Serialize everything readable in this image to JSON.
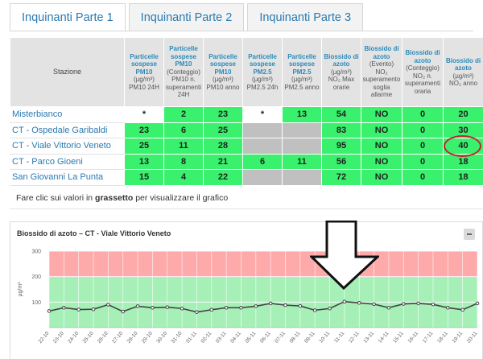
{
  "tabs": [
    {
      "label": "Inquinanti Parte 1",
      "active": true
    },
    {
      "label": "Inquinanti Parte 2",
      "active": false
    },
    {
      "label": "Inquinanti Parte 3",
      "active": false
    }
  ],
  "table": {
    "station_header": "Stazione",
    "columns": [
      {
        "title": "Particelle sospese PM10",
        "unit": "(µg/m³)",
        "desc": "PM10 24H"
      },
      {
        "title": "Particelle sospese PM10",
        "unit": "(Conteggio)",
        "desc": "PM10 n. superamenti 24H"
      },
      {
        "title": "Particelle sospese PM10",
        "unit": "(µg/m³)",
        "desc": "PM10 anno"
      },
      {
        "title": "Particelle sospese PM2.5",
        "unit": "(µg/m³)",
        "desc": "PM2.5 24h"
      },
      {
        "title": "Particelle sospese PM2.5",
        "unit": "(µg/m³)",
        "desc": "PM2.5 anno"
      },
      {
        "title": "Biossido di azoto",
        "unit": "(µg/m³)",
        "desc": "NO₂ Max orarie"
      },
      {
        "title": "Biossido di azoto",
        "unit": "(Evento)",
        "desc": "NO₂ superamento soglia allarme"
      },
      {
        "title": "Biossido di azoto",
        "unit": "(Conteggio)",
        "desc": "NO₂ n. superamenti oraria"
      },
      {
        "title": "Biossido di azoto",
        "unit": "(µg/m³)",
        "desc": "NO₂ anno"
      }
    ],
    "rows": [
      {
        "name": "Misterbianco",
        "cells": [
          "*",
          "2",
          "23",
          "*",
          "13",
          "54",
          "NO",
          "0",
          "20"
        ]
      },
      {
        "name": "CT - Ospedale Garibaldi",
        "cells": [
          "23",
          "6",
          "25",
          "",
          "",
          "83",
          "NO",
          "0",
          "30"
        ]
      },
      {
        "name": "CT - Viale Vittorio Veneto",
        "cells": [
          "25",
          "11",
          "28",
          "",
          "",
          "95",
          "NO",
          "0",
          "40"
        ]
      },
      {
        "name": "CT - Parco Gioeni",
        "cells": [
          "13",
          "8",
          "21",
          "6",
          "11",
          "56",
          "NO",
          "0",
          "18"
        ]
      },
      {
        "name": "San Giovanni La Punta",
        "cells": [
          "15",
          "4",
          "22",
          "",
          "",
          "72",
          "NO",
          "0",
          "18"
        ]
      }
    ],
    "highlight_color": "#c0262d"
  },
  "note": {
    "prefix": "Fare clic sui valori in ",
    "bold": "grassetto",
    "suffix": " per visualizzare il grafico"
  },
  "chart_panel": {
    "title": "Biossido di azoto – CT - Viale Vittorio Veneto",
    "collapse_icon": "minus-icon"
  },
  "chart_data": {
    "type": "line",
    "title": "Biossido di azoto – CT - Viale Vittorio Veneto",
    "ylabel": "µg/m³",
    "ylim": [
      0,
      300
    ],
    "yticks": [
      100,
      200,
      300
    ],
    "bands": [
      {
        "from": 0,
        "to": 200,
        "color": "#a6f0b8"
      },
      {
        "from": 200,
        "to": 300,
        "color": "#ffaaaa"
      }
    ],
    "x": [
      "22-10",
      "23-10",
      "24-10",
      "25-10",
      "26-10",
      "27-10",
      "28-10",
      "29-10",
      "30-10",
      "31-10",
      "01-11",
      "02-11",
      "03-11",
      "04-11",
      "05-11",
      "06-11",
      "07-11",
      "08-11",
      "09-11",
      "10-11",
      "11-11",
      "12-11",
      "13-11",
      "14-11",
      "15-11",
      "16-11",
      "17-11",
      "18-11",
      "19-11",
      "20-11"
    ],
    "series": [
      {
        "values": [
          65,
          78,
          71,
          72,
          90,
          63,
          84,
          78,
          80,
          75,
          61,
          70,
          78,
          78,
          84,
          95,
          88,
          85,
          68,
          75,
          102,
          97,
          92,
          78,
          93,
          95,
          91,
          78,
          70,
          95
        ]
      }
    ],
    "line_color": "#444444",
    "grid": true
  }
}
